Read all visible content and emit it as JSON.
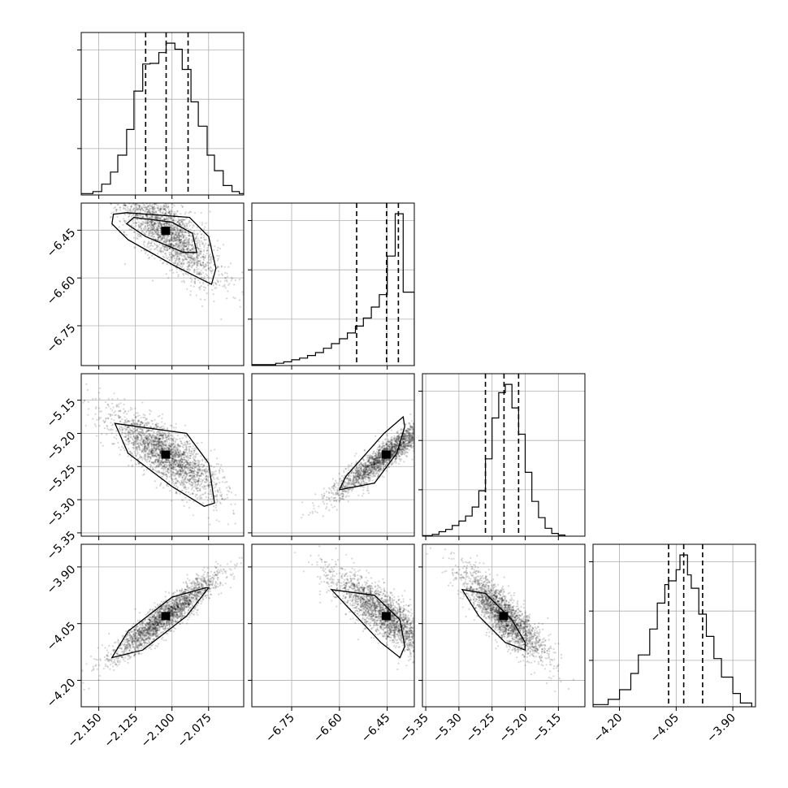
{
  "chart_data": {
    "type": "corner",
    "grid": true,
    "parameters": [
      {
        "range": [
          -2.162,
          -2.051
        ],
        "ticks": [
          -2.15,
          -2.125,
          -2.1,
          -2.075
        ],
        "tick_labels": [
          "−2.150",
          "−2.125",
          "−2.100",
          "−2.075"
        ],
        "quantiles": [
          -2.118,
          -2.104,
          -2.089
        ],
        "hist_edges": [
          -2.162,
          -2.154,
          -2.148,
          -2.142,
          -2.137,
          -2.131,
          -2.126,
          -2.12,
          -2.115,
          -2.109,
          -2.104,
          -2.098,
          -2.093,
          -2.087,
          -2.082,
          -2.076,
          -2.071,
          -2.065,
          -2.059,
          -2.054,
          -2.051
        ],
        "hist_counts": [
          0.2,
          0.5,
          1.6,
          3.4,
          5.9,
          9.7,
          15.4,
          19.4,
          19.5,
          21.1,
          22.5,
          21.6,
          18.6,
          13.8,
          10.2,
          5.9,
          3.6,
          1.4,
          0.5,
          0.2
        ]
      },
      {
        "range": [
          -6.875,
          -6.365
        ],
        "ticks": [
          -6.75,
          -6.6,
          -6.45
        ],
        "tick_labels": [
          "−6.75",
          "−6.60",
          "−6.45"
        ],
        "quantiles": [
          -6.546,
          -6.452,
          -6.415
        ],
        "hist_edges": [
          -6.875,
          -6.8,
          -6.775,
          -6.75,
          -6.725,
          -6.7,
          -6.675,
          -6.65,
          -6.625,
          -6.6,
          -6.575,
          -6.55,
          -6.525,
          -6.5,
          -6.475,
          -6.45,
          -6.425,
          -6.4,
          -6.365
        ],
        "hist_counts": [
          0.3,
          0.8,
          1.3,
          2.0,
          2.6,
          3.5,
          4.5,
          6.0,
          7.6,
          9.3,
          11.3,
          13.7,
          16.5,
          20.3,
          24.6,
          38.0,
          52.7,
          25.5
        ]
      },
      {
        "range": [
          -5.355,
          -5.11
        ],
        "ticks": [
          -5.35,
          -5.3,
          -5.25,
          -5.2,
          -5.15
        ],
        "tick_labels": [
          "−5.35",
          "−5.30",
          "−5.25",
          "−5.20",
          "−5.15"
        ],
        "quantiles": [
          -5.26,
          -5.232,
          -5.21
        ],
        "hist_edges": [
          -5.355,
          -5.34,
          -5.33,
          -5.32,
          -5.31,
          -5.3,
          -5.29,
          -5.28,
          -5.27,
          -5.26,
          -5.25,
          -5.24,
          -5.23,
          -5.22,
          -5.21,
          -5.2,
          -5.19,
          -5.18,
          -5.17,
          -5.16,
          -5.15,
          -5.14
        ],
        "hist_counts": [
          0.1,
          0.3,
          0.8,
          1.2,
          1.9,
          2.7,
          3.6,
          5.2,
          8.1,
          13.8,
          21.1,
          25.6,
          27.1,
          22.9,
          18.2,
          11.4,
          6.2,
          3.3,
          1.4,
          0.5,
          0.2
        ]
      },
      {
        "range": [
          -4.27,
          -3.84
        ],
        "ticks": [
          -4.2,
          -4.05,
          -3.9
        ],
        "tick_labels": [
          "−4.20",
          "−4.05",
          "−3.90"
        ],
        "quantiles": [
          -4.07,
          -4.03,
          -3.98
        ],
        "hist_edges": [
          -4.27,
          -4.23,
          -4.2,
          -4.17,
          -4.15,
          -4.12,
          -4.1,
          -4.08,
          -4.07,
          -4.05,
          -4.04,
          -4.02,
          -4.01,
          -3.99,
          -3.97,
          -3.95,
          -3.93,
          -3.9,
          -3.88,
          -3.85
        ],
        "hist_counts": [
          0.3,
          1.0,
          2.3,
          4.5,
          7.0,
          10.5,
          14.0,
          16.5,
          17.0,
          18.5,
          20.5,
          17.8,
          16.0,
          12.5,
          9.5,
          6.5,
          4.0,
          1.8,
          0.5
        ]
      }
    ],
    "pairs": [
      {
        "row": 1,
        "col": 0,
        "center": [
          -2.104,
          -6.452
        ],
        "corr": -0.8,
        "regions": [
          {
            "level": 0.39,
            "x": [
              -2.131,
              -2.088,
              -2.075,
              -2.07,
              -2.073,
              -2.099,
              -2.13,
              -2.141,
              -2.14,
              -2.131
            ],
            "y": [
              -6.395,
              -6.41,
              -6.47,
              -6.57,
              -6.62,
              -6.56,
              -6.48,
              -6.43,
              -6.4,
              -6.395
            ]
          },
          {
            "level": 0.86,
            "x": [
              -2.126,
              -2.1,
              -2.086,
              -2.083,
              -2.092,
              -2.118,
              -2.131,
              -2.126
            ],
            "y": [
              -6.41,
              -6.425,
              -6.46,
              -6.52,
              -6.52,
              -6.47,
              -6.43,
              -6.41
            ]
          }
        ]
      },
      {
        "row": 2,
        "col": 0,
        "center": [
          -2.104,
          -5.232
        ],
        "corr": -0.8,
        "regions": [
          {
            "level": 0.39,
            "x": [
              -2.139,
              -2.09,
              -2.075,
              -2.071,
              -2.078,
              -2.1,
              -2.13,
              -2.139
            ],
            "y": [
              -5.185,
              -5.2,
              -5.245,
              -5.305,
              -5.31,
              -5.28,
              -5.23,
              -5.185
            ]
          }
        ]
      },
      {
        "row": 2,
        "col": 1,
        "center": [
          -6.452,
          -5.232
        ],
        "corr": 0.94,
        "regions": [
          {
            "level": 0.39,
            "x": [
              -6.6,
              -6.49,
              -6.42,
              -6.395,
              -6.4,
              -6.46,
              -6.58,
              -6.6
            ],
            "y": [
              -5.285,
              -5.275,
              -5.23,
              -5.19,
              -5.175,
              -5.2,
              -5.265,
              -5.285
            ]
          }
        ]
      },
      {
        "row": 3,
        "col": 0,
        "center": [
          -2.104,
          -4.03
        ],
        "corr": 0.93,
        "regions": [
          {
            "level": 0.39,
            "x": [
              -2.141,
              -2.12,
              -2.09,
              -2.075,
              -2.077,
              -2.1,
              -2.13,
              -2.141
            ],
            "y": [
              -4.14,
              -4.12,
              -4.03,
              -3.955,
              -3.955,
              -3.98,
              -4.07,
              -4.14
            ]
          }
        ]
      },
      {
        "row": 3,
        "col": 1,
        "center": [
          -6.452,
          -4.03
        ],
        "corr": -0.84,
        "regions": [
          {
            "level": 0.39,
            "x": [
              -6.625,
              -6.49,
              -6.41,
              -6.395,
              -6.41,
              -6.47,
              -6.625
            ],
            "y": [
              -3.96,
              -3.975,
              -4.04,
              -4.11,
              -4.14,
              -4.1,
              -3.96
            ]
          }
        ]
      },
      {
        "row": 3,
        "col": 2,
        "center": [
          -5.232,
          -4.03
        ],
        "corr": -0.84,
        "regions": [
          {
            "level": 0.39,
            "x": [
              -5.295,
              -5.26,
              -5.22,
              -5.2,
              -5.2,
              -5.23,
              -5.27,
              -5.295
            ],
            "y": [
              -3.96,
              -3.97,
              -4.04,
              -4.1,
              -4.12,
              -4.1,
              -4.03,
              -3.96
            ]
          }
        ]
      }
    ]
  }
}
